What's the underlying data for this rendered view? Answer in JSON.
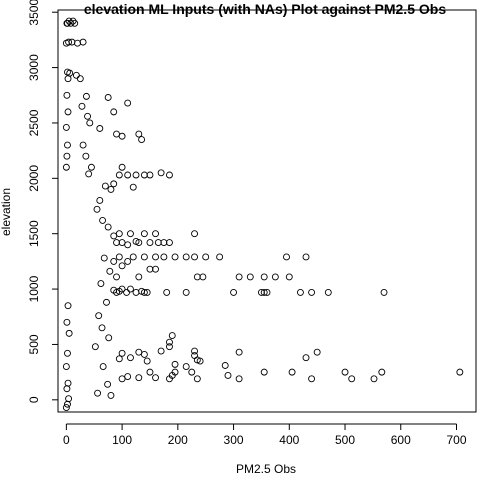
{
  "chart_data": {
    "type": "scatter",
    "title": "elevation ML Inputs (with NAs) Plot against PM2.5 Obs",
    "xlabel": "PM2.5 Obs",
    "ylabel": "elevation",
    "xlim": [
      -15,
      735
    ],
    "ylim": [
      -110,
      3520
    ],
    "xticks": [
      0,
      100,
      200,
      300,
      400,
      500,
      600,
      700
    ],
    "yticks": [
      0,
      500,
      1000,
      1500,
      2000,
      2500,
      3000,
      3500
    ],
    "xtick_labels": [
      "0",
      "100",
      "200",
      "300",
      "400",
      "500",
      "600",
      "700"
    ],
    "ytick_labels": [
      "0",
      "500",
      "1000",
      "1500",
      "2000",
      "2500",
      "3000",
      "3500"
    ],
    "grid": false,
    "marker": "open-circle",
    "series": [
      {
        "points": [
          [
            706,
            250
          ],
          [
            566,
            250
          ],
          [
            552,
            190
          ],
          [
            512,
            190
          ],
          [
            500,
            250
          ],
          [
            440,
            190
          ],
          [
            405,
            250
          ],
          [
            355,
            250
          ],
          [
            310,
            190
          ],
          [
            290,
            220
          ],
          [
            235,
            190
          ],
          [
            225,
            250
          ],
          [
            195,
            250
          ],
          [
            185,
            190
          ],
          [
            190,
            220
          ],
          [
            160,
            200
          ],
          [
            150,
            250
          ],
          [
            130,
            200
          ],
          [
            110,
            210
          ],
          [
            100,
            190
          ],
          [
            450,
            430
          ],
          [
            430,
            380
          ],
          [
            310,
            430
          ],
          [
            285,
            310
          ],
          [
            230,
            440
          ],
          [
            230,
            400
          ],
          [
            235,
            360
          ],
          [
            240,
            350
          ],
          [
            215,
            300
          ],
          [
            195,
            320
          ],
          [
            190,
            580
          ],
          [
            185,
            520
          ],
          [
            185,
            480
          ],
          [
            170,
            440
          ],
          [
            145,
            350
          ],
          [
            140,
            410
          ],
          [
            130,
            430
          ],
          [
            115,
            380
          ],
          [
            100,
            420
          ],
          [
            95,
            370
          ],
          [
            570,
            970
          ],
          [
            470,
            970
          ],
          [
            440,
            970
          ],
          [
            420,
            970
          ],
          [
            360,
            970
          ],
          [
            355,
            970
          ],
          [
            350,
            970
          ],
          [
            300,
            970
          ],
          [
            215,
            970
          ],
          [
            180,
            970
          ],
          [
            145,
            970
          ],
          [
            140,
            970
          ],
          [
            135,
            980
          ],
          [
            125,
            970
          ],
          [
            115,
            1000
          ],
          [
            108,
            970
          ],
          [
            100,
            1000
          ],
          [
            95,
            980
          ],
          [
            90,
            970
          ],
          [
            85,
            990
          ],
          [
            430,
            1290
          ],
          [
            400,
            1110
          ],
          [
            395,
            1290
          ],
          [
            375,
            1110
          ],
          [
            355,
            1110
          ],
          [
            330,
            1110
          ],
          [
            310,
            1110
          ],
          [
            275,
            1290
          ],
          [
            250,
            1290
          ],
          [
            245,
            1110
          ],
          [
            235,
            1110
          ],
          [
            230,
            1290
          ],
          [
            215,
            1290
          ],
          [
            195,
            1290
          ],
          [
            175,
            1290
          ],
          [
            160,
            1180
          ],
          [
            160,
            1290
          ],
          [
            150,
            1180
          ],
          [
            140,
            1290
          ],
          [
            130,
            1110
          ],
          [
            120,
            1290
          ],
          [
            110,
            1250
          ],
          [
            100,
            1210
          ],
          [
            95,
            1290
          ],
          [
            90,
            1110
          ],
          [
            85,
            1250
          ],
          [
            230,
            1500
          ],
          [
            185,
            1420
          ],
          [
            175,
            1420
          ],
          [
            165,
            1420
          ],
          [
            160,
            1500
          ],
          [
            150,
            1420
          ],
          [
            140,
            1500
          ],
          [
            130,
            1420
          ],
          [
            125,
            1430
          ],
          [
            115,
            1500
          ],
          [
            110,
            1400
          ],
          [
            100,
            1420
          ],
          [
            95,
            1500
          ],
          [
            90,
            1420
          ],
          [
            85,
            1480
          ],
          [
            185,
            2030
          ],
          [
            170,
            2050
          ],
          [
            150,
            2030
          ],
          [
            140,
            2030
          ],
          [
            125,
            2030
          ],
          [
            120,
            1920
          ],
          [
            110,
            2030
          ],
          [
            100,
            2100
          ],
          [
            95,
            2030
          ],
          [
            85,
            1950
          ],
          [
            130,
            2400
          ],
          [
            110,
            2680
          ],
          [
            100,
            2380
          ],
          [
            135,
            2350
          ],
          [
            90,
            2400
          ],
          [
            85,
            2600
          ],
          [
            75,
            2730
          ],
          [
            60,
            2450
          ],
          [
            80,
            1900
          ],
          [
            70,
            1930
          ],
          [
            65,
            1620
          ],
          [
            75,
            1560
          ],
          [
            60,
            1800
          ],
          [
            55,
            1720
          ],
          [
            68,
            1280
          ],
          [
            78,
            1160
          ],
          [
            62,
            1050
          ],
          [
            72,
            880
          ],
          [
            58,
            760
          ],
          [
            64,
            650
          ],
          [
            76,
            560
          ],
          [
            52,
            480
          ],
          [
            66,
            300
          ],
          [
            74,
            140
          ],
          [
            56,
            60
          ],
          [
            80,
            40
          ],
          [
            40,
            2040
          ],
          [
            45,
            2100
          ],
          [
            35,
            2200
          ],
          [
            30,
            2300
          ],
          [
            42,
            2500
          ],
          [
            38,
            2560
          ],
          [
            28,
            2650
          ],
          [
            36,
            2740
          ],
          [
            25,
            2900
          ],
          [
            30,
            3230
          ],
          [
            20,
            3220
          ],
          [
            18,
            2930
          ],
          [
            15,
            3400
          ],
          [
            12,
            3420
          ],
          [
            8,
            3400
          ],
          [
            5,
            3420
          ],
          [
            2,
            3400
          ],
          [
            10,
            3230
          ],
          [
            6,
            2950
          ],
          [
            3,
            2900
          ],
          [
            1,
            3400
          ],
          [
            4,
            3230
          ],
          [
            2,
            2960
          ],
          [
            0,
            3220
          ],
          [
            1,
            2750
          ],
          [
            3,
            2600
          ],
          [
            0,
            2460
          ],
          [
            2,
            2300
          ],
          [
            1,
            2200
          ],
          [
            0,
            2100
          ],
          [
            0,
            -70
          ],
          [
            2,
            -40
          ],
          [
            4,
            10
          ],
          [
            1,
            100
          ],
          [
            3,
            150
          ],
          [
            0,
            300
          ],
          [
            2,
            420
          ],
          [
            5,
            600
          ],
          [
            1,
            700
          ],
          [
            3,
            850
          ]
        ]
      }
    ]
  }
}
